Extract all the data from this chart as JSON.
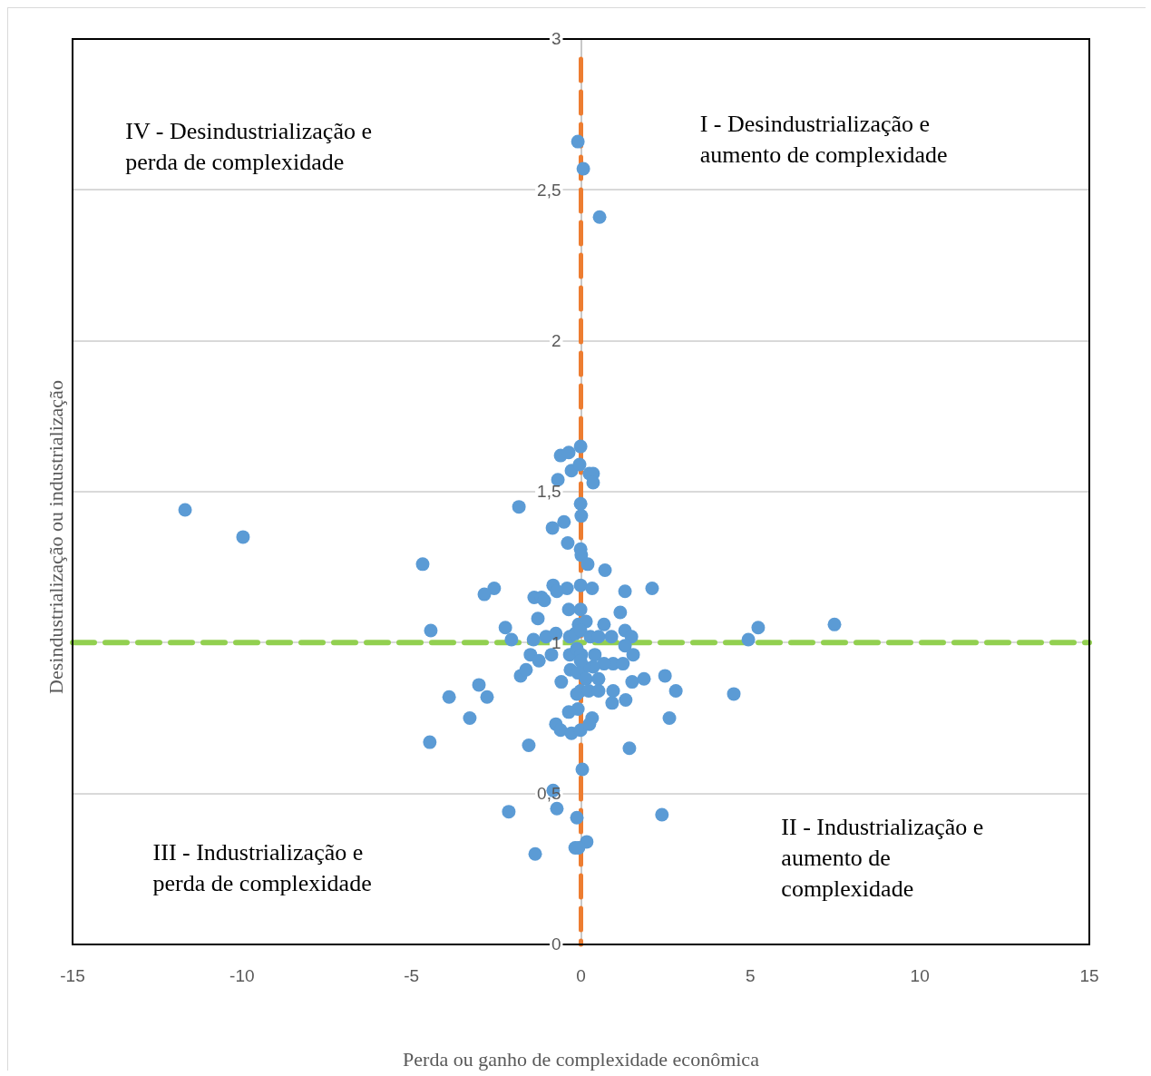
{
  "chart_data": {
    "type": "scatter",
    "xlabel": "Perda ou ganho de complexidade econômica",
    "ylabel": "Desindustrialização ou industrialização",
    "xlim": [
      -15,
      15
    ],
    "xticks": [
      -15,
      -10,
      -5,
      0,
      5,
      10,
      15
    ],
    "ylim": [
      0,
      3
    ],
    "yticks": [
      0,
      {
        "value": 0.5,
        "label": "0,5"
      },
      1,
      {
        "value": 1.5,
        "label": "1,5"
      },
      2,
      {
        "value": 2.5,
        "label": "2,5"
      },
      3
    ],
    "grid": "y",
    "marker": "circle",
    "legend": false,
    "ref_lines": [
      {
        "axis": "x",
        "value": 0,
        "color": "#ed7d31",
        "line_style": "dashed"
      },
      {
        "axis": "y",
        "value": 1,
        "color": "#92d050",
        "line_style": "dashed"
      }
    ],
    "annotations": [
      "IV - Desindustrialização e\nperda de complexidade",
      "I - Desindustrialização e\naumento de complexidade",
      "III - Industrialização e\nperda de complexidade",
      "II - Industrialização e\naumento de\ncomplexidade"
    ],
    "series": [
      {
        "color": "#5b9bd5",
        "x": [
          -0.09,
          0.07,
          0.55,
          -11.68,
          -9.97,
          -4.67,
          -4.43,
          -0.6,
          -0.36,
          -0.01,
          -0.28,
          -0.68,
          -0.04,
          0.25,
          0.36,
          0.36,
          -1.83,
          -0.01,
          0.01,
          -0.84,
          -0.5,
          -0.39,
          -0.01,
          0.01,
          0.2,
          0.71,
          -2.56,
          -2.85,
          -0.82,
          -0.41,
          -0.01,
          0.33,
          2.1,
          -1.38,
          -1.16,
          -1.08,
          -0.71,
          -0.01,
          -0.36,
          1.16,
          1.3,
          0.68,
          -0.07,
          0.15,
          -2.23,
          -1.27,
          -2.05,
          -1.4,
          -1.03,
          -0.74,
          -0.33,
          -0.17,
          -0.01,
          0.28,
          0.52,
          1.3,
          1.49,
          0.9,
          1.3,
          -1.49,
          -1.24,
          -0.87,
          -0.33,
          -0.12,
          0.01,
          0.41,
          0.95,
          1.54,
          1.24,
          0.68,
          0.36,
          0.09,
          -0.01,
          -1.78,
          -1.62,
          -0.58,
          -0.31,
          -0.09,
          0.15,
          0.52,
          -0.01,
          -0.12,
          0.23,
          0.52,
          0.95,
          1.51,
          1.86,
          2.48,
          2.8,
          -3.01,
          -3.89,
          -2.77,
          -0.09,
          -0.36,
          0.33,
          0.92,
          1.32,
          -3.28,
          -0.74,
          -0.6,
          -0.28,
          -0.01,
          0.25,
          2.61,
          -1.54,
          -4.46,
          1.43,
          0.04,
          -0.82,
          -0.71,
          -2.13,
          -0.12,
          2.39,
          -1.35,
          -0.17,
          0.17,
          -0.07,
          4.51,
          4.94,
          5.23,
          7.48
        ],
        "values": [
          2.66,
          2.57,
          2.41,
          1.44,
          1.35,
          1.26,
          1.04,
          1.62,
          1.63,
          1.65,
          1.57,
          1.54,
          1.59,
          1.56,
          1.56,
          1.53,
          1.45,
          1.46,
          1.42,
          1.38,
          1.4,
          1.33,
          1.31,
          1.29,
          1.26,
          1.24,
          1.18,
          1.16,
          1.19,
          1.18,
          1.19,
          1.18,
          1.18,
          1.15,
          1.15,
          1.14,
          1.17,
          1.11,
          1.11,
          1.1,
          1.17,
          1.06,
          1.06,
          1.07,
          1.05,
          1.08,
          1.01,
          1.01,
          1.02,
          1.03,
          1.02,
          1.03,
          1.04,
          1.02,
          1.02,
          1.04,
          1.02,
          1.02,
          0.99,
          0.96,
          0.94,
          0.96,
          0.96,
          0.98,
          0.96,
          0.96,
          0.93,
          0.96,
          0.93,
          0.93,
          0.92,
          0.92,
          0.94,
          0.89,
          0.91,
          0.87,
          0.91,
          0.9,
          0.88,
          0.88,
          0.84,
          0.83,
          0.84,
          0.84,
          0.84,
          0.87,
          0.88,
          0.89,
          0.84,
          0.86,
          0.82,
          0.82,
          0.78,
          0.77,
          0.75,
          0.8,
          0.81,
          0.75,
          0.73,
          0.71,
          0.7,
          0.71,
          0.73,
          0.75,
          0.66,
          0.67,
          0.65,
          0.58,
          0.51,
          0.45,
          0.44,
          0.42,
          0.43,
          0.3,
          0.32,
          0.34,
          0.32,
          0.83,
          1.01,
          1.05,
          1.06
        ]
      }
    ]
  }
}
